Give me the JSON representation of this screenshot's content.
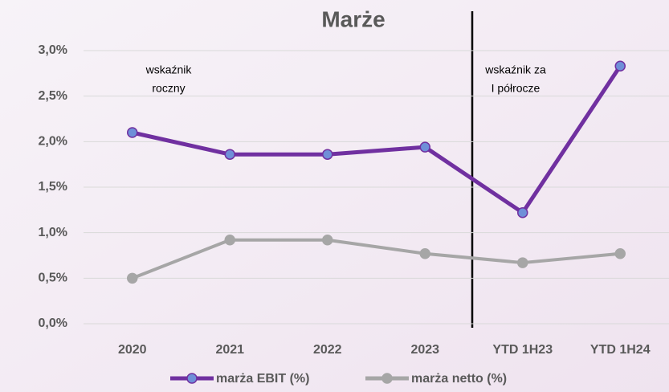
{
  "chart_data": {
    "type": "line",
    "title": "Marże",
    "categories": [
      "2020",
      "2021",
      "2022",
      "2023",
      "YTD 1H23",
      "YTD 1H24"
    ],
    "series": [
      {
        "name": "marża EBIT (%)",
        "color": "#7030a0",
        "marker_color": "#6f8fd8",
        "values": [
          2.1,
          1.86,
          1.86,
          1.94,
          1.22,
          2.83
        ]
      },
      {
        "name": "marża netto (%)",
        "color": "#a6a6a6",
        "marker_color": "#a6a6a6",
        "values": [
          0.5,
          0.92,
          0.92,
          0.77,
          0.67,
          0.77
        ]
      }
    ],
    "ylim": [
      0,
      3.0
    ],
    "yticks": [
      {
        "value": 0,
        "label": "0,0%"
      },
      {
        "value": 0.5,
        "label": "0,5%"
      },
      {
        "value": 1.0,
        "label": "1,0%"
      },
      {
        "value": 1.5,
        "label": "1,5%"
      },
      {
        "value": 2.0,
        "label": "2,0%"
      },
      {
        "value": 2.5,
        "label": "2,5%"
      },
      {
        "value": 3.0,
        "label": "3,0%"
      }
    ],
    "grid": true,
    "annotations": [
      {
        "lines": [
          "wskaźnik",
          "roczny"
        ]
      },
      {
        "lines": [
          "wskaźnik za",
          "I półrocze"
        ]
      }
    ]
  }
}
